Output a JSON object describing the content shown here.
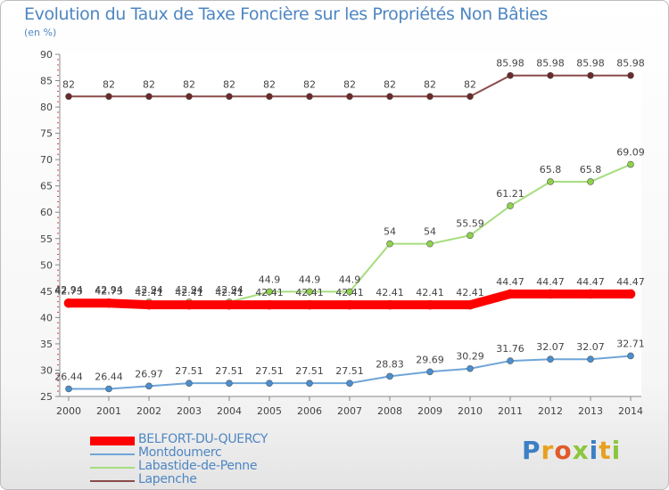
{
  "header": {
    "title": "Evolution du Taux de Taxe Foncière sur les Propriétés Non Bâties",
    "unit": "(en %)"
  },
  "logo": {
    "text": "Proxiti"
  },
  "chart_data": {
    "type": "line",
    "title": "Evolution du Taux de Taxe Foncière sur les Propriétés Non Bâties",
    "ylabel": "(en %)",
    "xlabel": "",
    "ylim": [
      25,
      90
    ],
    "yticks": [
      25,
      30,
      35,
      40,
      45,
      50,
      55,
      60,
      65,
      70,
      75,
      80,
      85,
      90
    ],
    "categories": [
      "2000",
      "2001",
      "2002",
      "2003",
      "2004",
      "2005",
      "2006",
      "2007",
      "2008",
      "2009",
      "2010",
      "2011",
      "2012",
      "2013",
      "2014"
    ],
    "grid": false,
    "legend_position": "bottom-left",
    "series": [
      {
        "name": "Lapenche",
        "color": "#8b4a4a",
        "marker": "#6b2a2a",
        "values": [
          82,
          82,
          82,
          82,
          82,
          82,
          82,
          82,
          82,
          82,
          82,
          85.98,
          85.98,
          85.98,
          85.98
        ],
        "labels": [
          "82",
          "82",
          "82",
          "82",
          "82",
          "82",
          "82",
          "82",
          "82",
          "82",
          "82",
          "85.98",
          "85.98",
          "85.98",
          "85.98"
        ]
      },
      {
        "name": "Labastide-de-Penne",
        "color": "#a6dd7e",
        "marker": "#8fd24b",
        "values": [
          42.94,
          42.94,
          42.94,
          42.94,
          42.94,
          44.9,
          44.9,
          44.9,
          54,
          54,
          55.59,
          61.21,
          65.8,
          65.8,
          69.09
        ],
        "labels": [
          "42.94",
          "42.94",
          "42.94",
          "42.94",
          "42.94",
          "44.9",
          "44.9",
          "44.9",
          "54",
          "54",
          "55.59",
          "61.21",
          "65.8",
          "65.8",
          "69.09"
        ]
      },
      {
        "name": "BELFORT-DU-QUERCY",
        "color": "#ff0000",
        "marker": "#ff0000",
        "values": [
          42.73,
          42.73,
          42.41,
          42.41,
          42.41,
          42.41,
          42.41,
          42.41,
          42.41,
          42.41,
          42.41,
          44.47,
          44.47,
          44.47,
          44.47
        ],
        "labels": [
          "42.73",
          "42.73",
          "42.41",
          "42.41",
          "42.41",
          "42.41",
          "42.41",
          "42.41",
          "42.41",
          "42.41",
          "42.41",
          "44.47",
          "44.47",
          "44.47",
          "44.47"
        ]
      },
      {
        "name": "Montdoumerc",
        "color": "#6fa5d8",
        "marker": "#4a8fcf",
        "values": [
          26.44,
          26.44,
          26.97,
          27.51,
          27.51,
          27.51,
          27.51,
          27.51,
          28.83,
          29.69,
          30.29,
          31.76,
          32.07,
          32.07,
          32.71
        ],
        "labels": [
          "26.44",
          "26.44",
          "26.97",
          "27.51",
          "27.51",
          "27.51",
          "27.51",
          "27.51",
          "28.83",
          "29.69",
          "30.29",
          "31.76",
          "32.07",
          "32.07",
          "32.71"
        ]
      }
    ]
  },
  "legend": [
    {
      "label": "BELFORT-DU-QUERCY",
      "color": "#ff0000",
      "thick": true
    },
    {
      "label": "Montdoumerc",
      "color": "#6fa5d8",
      "thick": false
    },
    {
      "label": "Labastide-de-Penne",
      "color": "#a6dd7e",
      "thick": false
    },
    {
      "label": "Lapenche",
      "color": "#8b4a4a",
      "thick": false
    }
  ]
}
